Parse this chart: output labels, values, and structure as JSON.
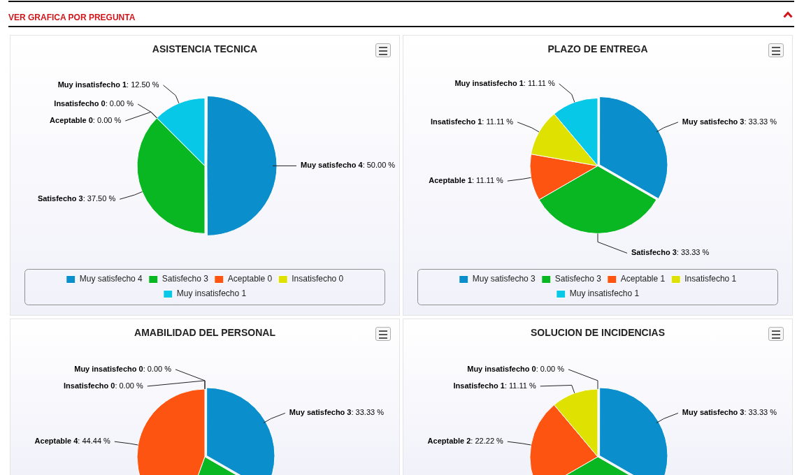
{
  "chart_data": [
    {
      "type": "pie",
      "title": "ASISTENCIA TECNICA",
      "annotations": [
        "VER GRAFICA POR PREGUNTA"
      ],
      "categories": [
        "Muy satisfecho 4",
        "Satisfecho 3",
        "Aceptable 0",
        "Insatisfecho 0",
        "Muy insatisfecho 1"
      ],
      "values": [
        50.0,
        37.5,
        0.0,
        0.0,
        12.5
      ],
      "value_labels": [
        ": 50.00 %",
        ": 37.50 %",
        ": 0.00 %",
        ": 0.00 %",
        ": 12.50 %"
      ],
      "colors": [
        "#0b8fcc",
        "#08b721",
        "#fd5511",
        "#dfe100",
        "#07c8e6"
      ],
      "legend": "bottom"
    },
    {
      "type": "pie",
      "title": "PLAZO DE ENTREGA",
      "categories": [
        "Muy satisfecho 3",
        "Satisfecho 3",
        "Aceptable 1",
        "Insatisfecho 1",
        "Muy insatisfecho 1"
      ],
      "values": [
        33.33,
        33.33,
        11.11,
        11.11,
        11.11
      ],
      "value_labels": [
        ": 33.33 %",
        ": 33.33 %",
        ": 11.11 %",
        ": 11.11 %",
        ": 11.11 %"
      ],
      "colors": [
        "#0b8fcc",
        "#08b721",
        "#fd5511",
        "#dfe100",
        "#07c8e6"
      ],
      "legend": "bottom"
    },
    {
      "type": "pie",
      "title": "AMABILIDAD DEL PERSONAL",
      "categories": [
        "Muy satisfecho 3",
        null,
        "Aceptable 4",
        "Insatisfecho 0",
        "Muy insatisfecho 0"
      ],
      "values": [
        33.33,
        22.22,
        44.44,
        0.0,
        0.0
      ],
      "value_labels": [
        ": 33.33 %",
        null,
        ": 44.44 %",
        ": 0.00 %",
        ": 0.00 %"
      ],
      "colors": [
        "#0b8fcc",
        "#08b721",
        "#fd5511",
        "#dfe100",
        "#07c8e6"
      ]
    },
    {
      "type": "pie",
      "title": "SOLUCION DE INCIDENCIAS",
      "categories": [
        "Muy satisfecho 3",
        null,
        "Aceptable 2",
        "Insatisfecho 1",
        "Muy insatisfecho 0"
      ],
      "values": [
        33.33,
        33.33,
        22.22,
        11.11,
        0.0
      ],
      "value_labels": [
        ": 33.33 %",
        null,
        ": 22.22 %",
        ": 11.11 %",
        ": 0.00 %"
      ],
      "colors": [
        "#0b8fcc",
        "#08b721",
        "#fd5511",
        "#dfe100",
        "#07c8e6"
      ]
    }
  ]
}
